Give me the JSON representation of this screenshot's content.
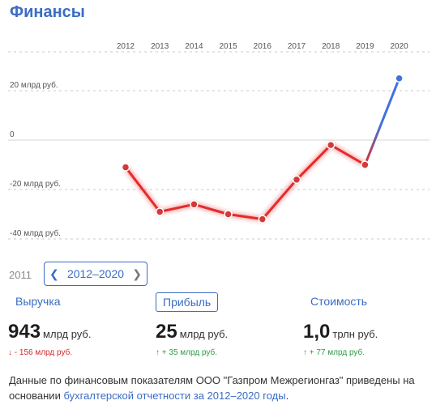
{
  "title": "Финансы",
  "chart_data": {
    "type": "line",
    "x": [
      "2012",
      "2013",
      "2014",
      "2015",
      "2016",
      "2017",
      "2018",
      "2019",
      "2020"
    ],
    "series": [
      {
        "values": [
          -11,
          -29,
          -26,
          -30,
          -32,
          -16,
          -2,
          -10,
          25
        ]
      }
    ],
    "y_ticks": [
      {
        "value": 20,
        "label": "20 млрд руб."
      },
      {
        "value": 0,
        "label": "0"
      },
      {
        "value": -20,
        "label": "-20 млрд руб."
      },
      {
        "value": -40,
        "label": "-40 млрд руб."
      }
    ],
    "ylim": [
      -44,
      30
    ],
    "colors": {
      "negative": "#e52b2b",
      "positive": "#3f72dd",
      "marker_negative": "#d23a3a",
      "marker_positive": "#3f72dd"
    }
  },
  "period": {
    "previous_year": "2011",
    "range_label": "2012–2020"
  },
  "tabs": {
    "revenue": "Выручка",
    "profit": "Прибыль",
    "value": "Стоимость"
  },
  "metrics": {
    "revenue": {
      "value": "943",
      "unit": "млрд руб.",
      "delta": "↓ - 156 млрд руб."
    },
    "profit": {
      "value": "25",
      "unit": "млрд руб.",
      "delta": "↑ + 35 млрд руб."
    },
    "value": {
      "value": "1,0",
      "unit": "трлн руб.",
      "delta": "↑ + 77 млрд руб."
    }
  },
  "note": {
    "text_before": "Данные по финансовым показателям ООО \"Газпром Межрегионгаз\" приведены на основании ",
    "link": "бухгалтерской отчетности за 2012–2020 годы",
    "text_after": "."
  }
}
